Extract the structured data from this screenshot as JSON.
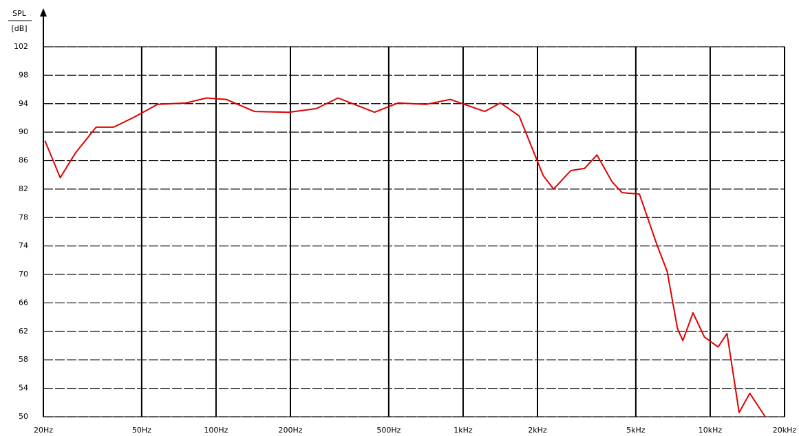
{
  "chart_data": {
    "type": "line",
    "y_label_top": "SPL",
    "y_label_bottom": "[dB]",
    "x": [
      20.3,
      23.4,
      27,
      32.7,
      38.5,
      46.6,
      58,
      75.6,
      91.5,
      110,
      143,
      197,
      254,
      312,
      438,
      546,
      707,
      887,
      1223,
      1416,
      1685,
      2110,
      2324,
      2730,
      3100,
      3480,
      4010,
      4400,
      5170,
      6070,
      6700,
      7370,
      7750,
      8520,
      9480,
      10770,
      11700,
      13100,
      14470,
      16700
    ],
    "series": [
      {
        "name": "SPL",
        "color": "#e00000",
        "values": [
          88.8,
          83.6,
          87.1,
          90.7,
          90.7,
          92.1,
          93.9,
          94.1,
          94.8,
          94.6,
          92.9,
          92.8,
          93.3,
          94.8,
          92.8,
          94.1,
          93.9,
          94.6,
          92.9,
          94.1,
          92.3,
          83.9,
          82.0,
          84.6,
          84.9,
          86.8,
          83.0,
          81.5,
          81.3,
          74.3,
          70.4,
          62.4,
          60.7,
          64.6,
          61.2,
          59.8,
          61.7,
          50.6,
          53.3,
          50
        ]
      }
    ],
    "log_x": true,
    "grid": true,
    "xlim": [
      20,
      20000
    ],
    "xticks": [
      {
        "value": 20,
        "label": "20Hz"
      },
      {
        "value": 50,
        "label": "50Hz"
      },
      {
        "value": 100,
        "label": "100Hz"
      },
      {
        "value": 200,
        "label": "200Hz"
      },
      {
        "value": 500,
        "label": "500Hz"
      },
      {
        "value": 1000,
        "label": "1kHz"
      },
      {
        "value": 2000,
        "label": "2kHz"
      },
      {
        "value": 5000,
        "label": "5kHz"
      },
      {
        "value": 10000,
        "label": "10kHz"
      },
      {
        "value": 20000,
        "label": "20kHz"
      }
    ],
    "ylim": [
      50,
      102
    ],
    "yticks": [
      50,
      54,
      58,
      62,
      66,
      70,
      74,
      78,
      82,
      86,
      90,
      94,
      98,
      102
    ]
  }
}
